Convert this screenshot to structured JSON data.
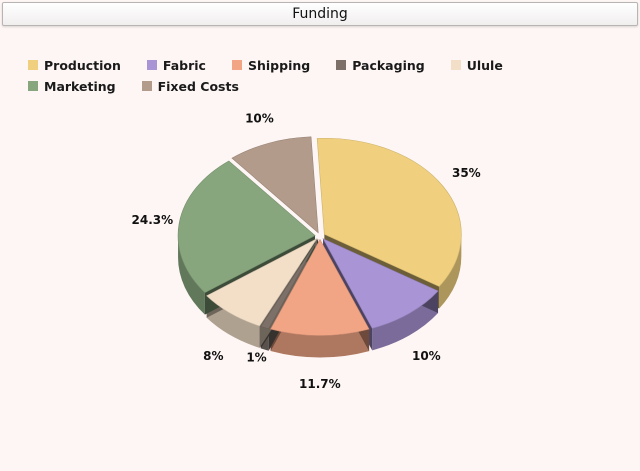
{
  "header": {
    "title": "Funding"
  },
  "chart_data": {
    "type": "pie",
    "title": "Funding",
    "legend_position": "top-left",
    "slices": [
      {
        "name": "Production",
        "value": 35,
        "label": "35%",
        "color": "#f0d07e"
      },
      {
        "name": "Fabric",
        "value": 10,
        "label": "10%",
        "color": "#a994d6"
      },
      {
        "name": "Shipping",
        "value": 11.7,
        "label": "11.7%",
        "color": "#f2a585"
      },
      {
        "name": "Packaging",
        "value": 1,
        "label": "1%",
        "color": "#7c7068"
      },
      {
        "name": "Ulule",
        "value": 8,
        "label": "8%",
        "color": "#f3dfc8"
      },
      {
        "name": "Marketing",
        "value": 24.3,
        "label": "24.3%",
        "color": "#88a67e"
      },
      {
        "name": "Fixed Costs",
        "value": 10,
        "label": "10%",
        "color": "#b39b8b"
      }
    ]
  }
}
